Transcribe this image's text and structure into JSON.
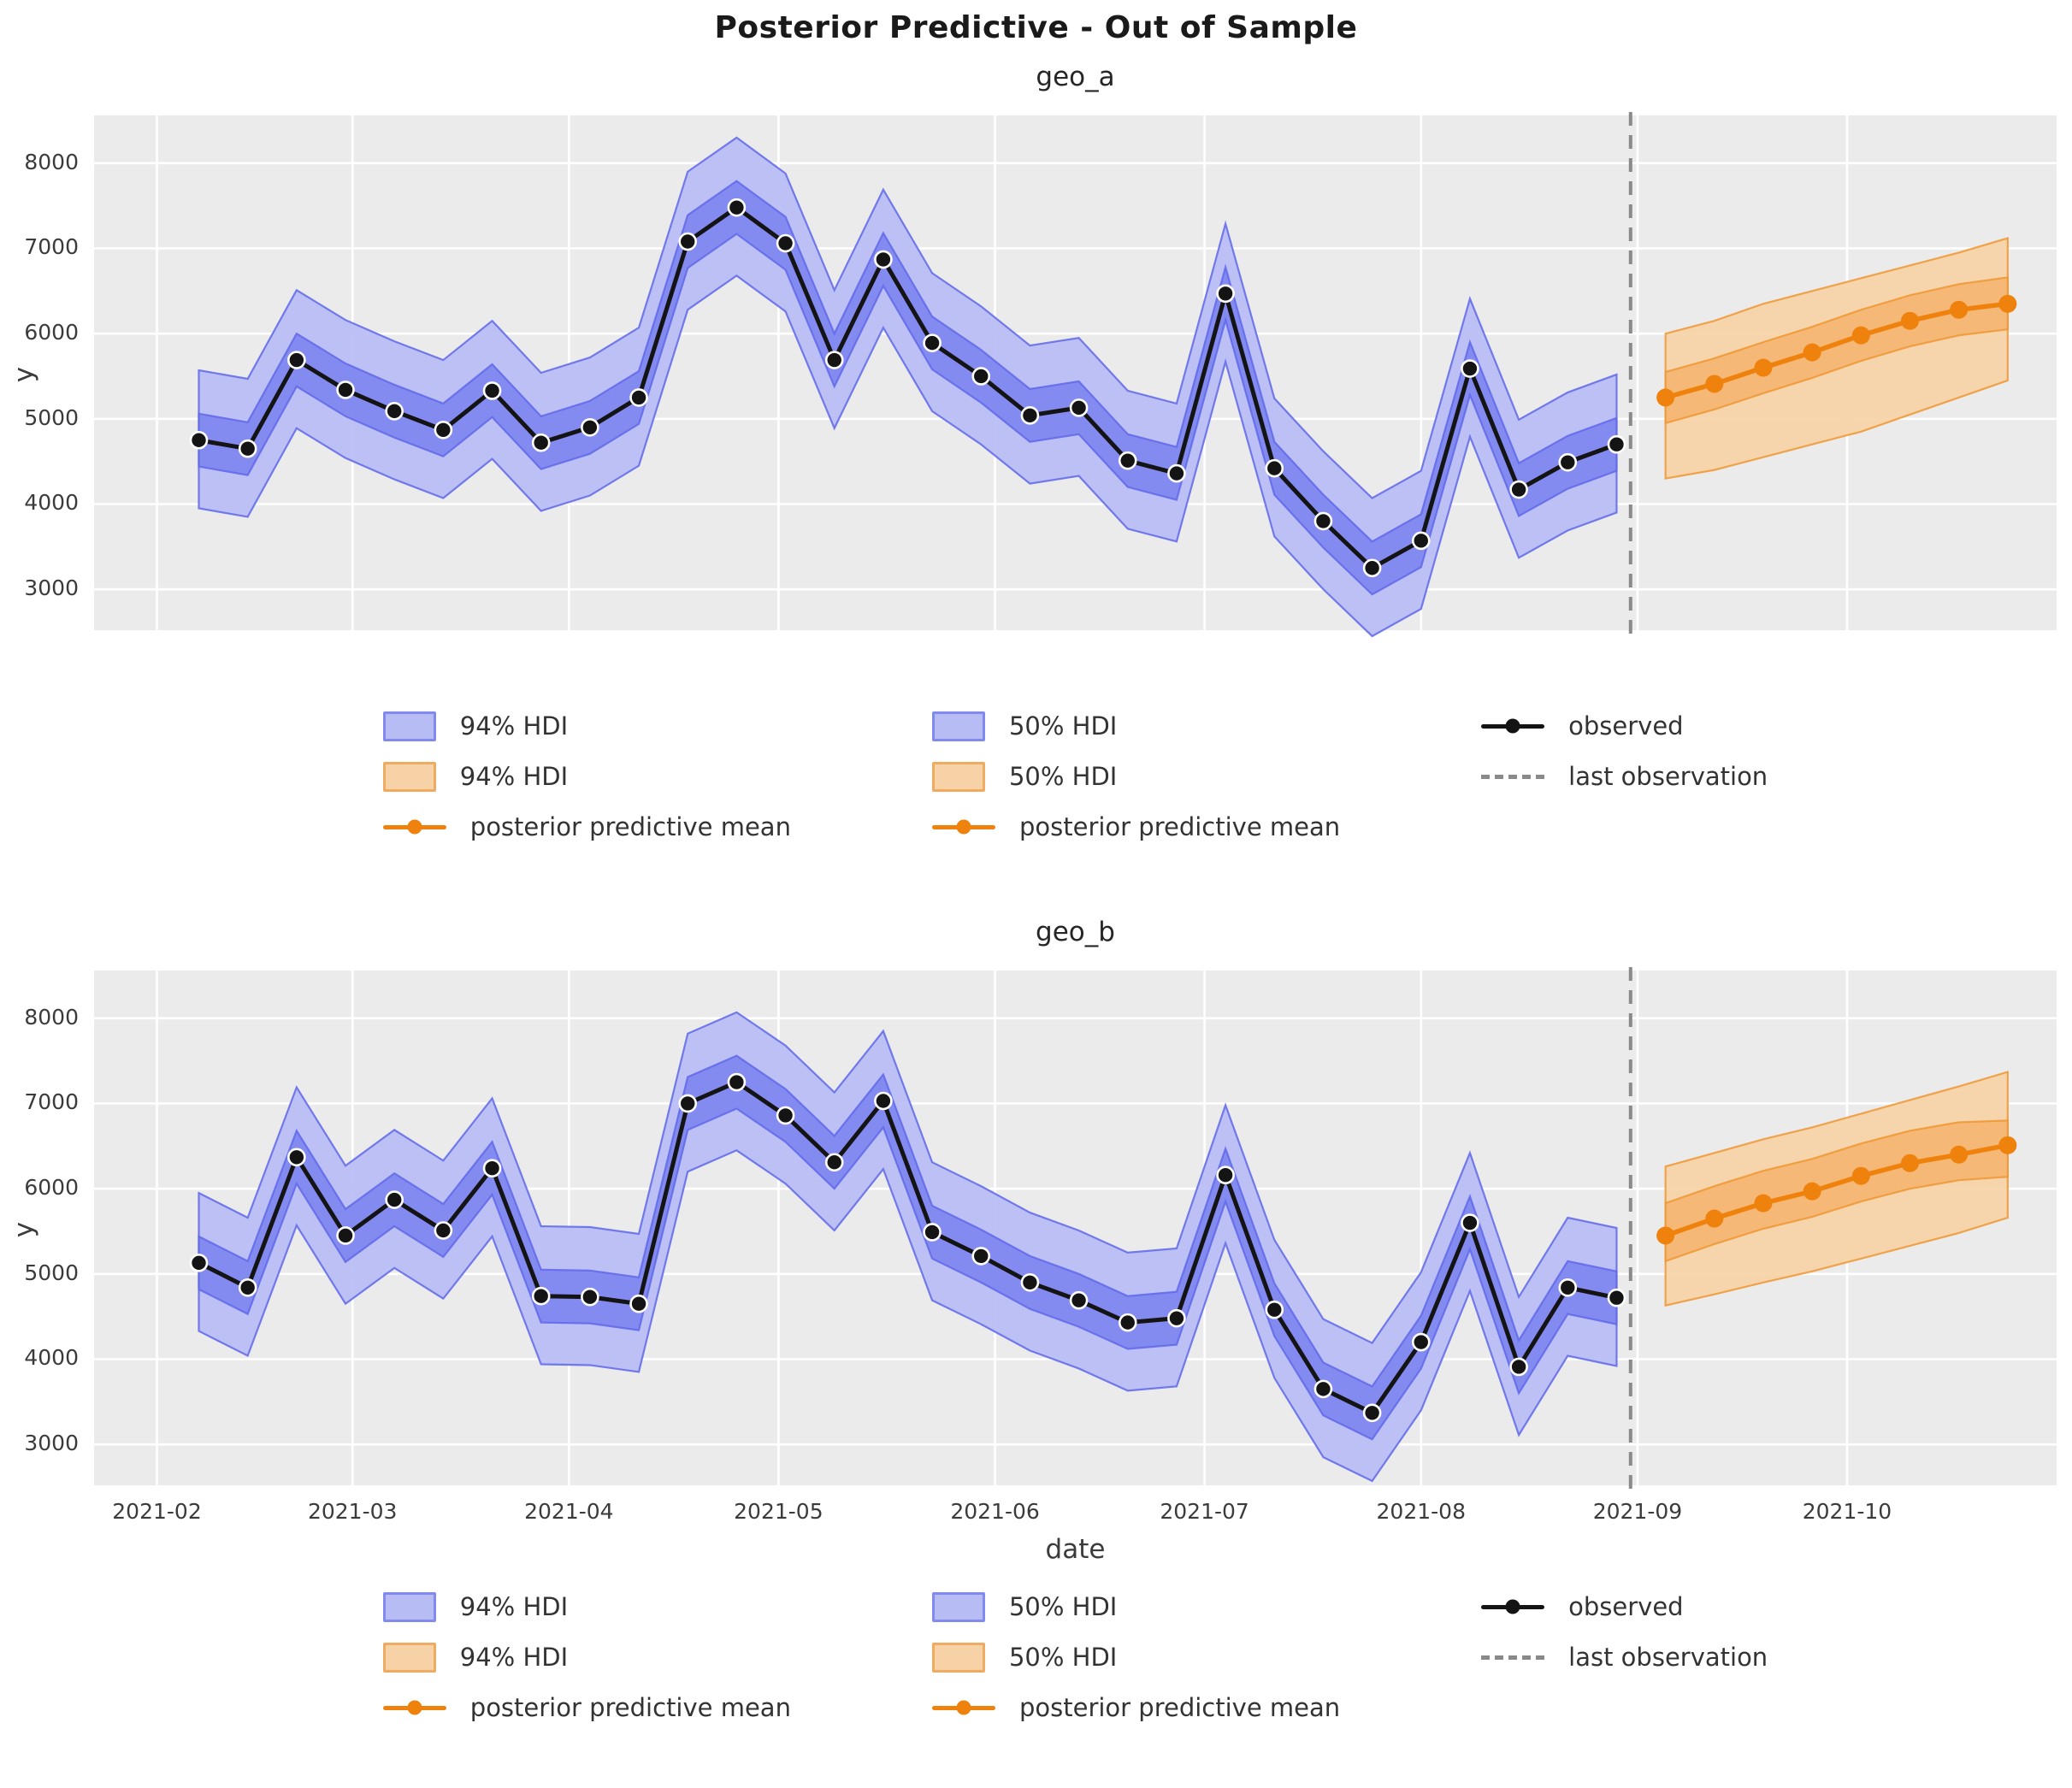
{
  "title": "Posterior Predictive - Out of Sample",
  "x_axis": {
    "label": "date",
    "ticks": [
      {
        "label": "2021-02",
        "date": "2021-02-01"
      },
      {
        "label": "2021-03",
        "date": "2021-03-01"
      },
      {
        "label": "2021-04",
        "date": "2021-04-01"
      },
      {
        "label": "2021-05",
        "date": "2021-05-01"
      },
      {
        "label": "2021-06",
        "date": "2021-06-01"
      },
      {
        "label": "2021-07",
        "date": "2021-07-01"
      },
      {
        "label": "2021-08",
        "date": "2021-08-01"
      },
      {
        "label": "2021-09",
        "date": "2021-09-01"
      },
      {
        "label": "2021-10",
        "date": "2021-10-01"
      }
    ]
  },
  "y_axis": {
    "label": "y",
    "ticks": [
      3000,
      4000,
      5000,
      6000,
      7000,
      8000
    ]
  },
  "legend": {
    "hdi94_insample": "94% HDI",
    "hdi50_insample": "50% HDI",
    "hdi94_forecast": "94% HDI",
    "hdi50_forecast": "50% HDI",
    "pp_mean": "posterior predictive mean",
    "observed": "observed",
    "last_observation": "last observation"
  },
  "colors": {
    "background": "#ffffff",
    "axes_background": "#ebebeb",
    "grid": "#ffffff",
    "hdi94_insample": "#b7bcf4",
    "hdi50_insample": "#7f87ef",
    "band_edge_insample": "#5f67ea",
    "observed": "#141414",
    "hdi94_forecast": "#f7d2a6",
    "hdi50_forecast": "#f5b571",
    "band_edge_forecast": "#ef9733",
    "pp_mean": "#ef820d",
    "last_observation": "#8a8a8a"
  },
  "chart_data": [
    {
      "type": "line",
      "title": "geo_a",
      "ylabel": "y",
      "ylim": [
        2520,
        8560
      ],
      "xlim": [
        "2021-01-23",
        "2021-10-31"
      ],
      "grid": true,
      "legend_position": "below",
      "last_observation_date": "2021-08-31",
      "observed": {
        "dates": [
          "2021-02-07",
          "2021-02-14",
          "2021-02-21",
          "2021-02-28",
          "2021-03-07",
          "2021-03-14",
          "2021-03-21",
          "2021-03-28",
          "2021-04-04",
          "2021-04-11",
          "2021-04-18",
          "2021-04-25",
          "2021-05-02",
          "2021-05-09",
          "2021-05-16",
          "2021-05-23",
          "2021-05-30",
          "2021-06-06",
          "2021-06-13",
          "2021-06-20",
          "2021-06-27",
          "2021-07-04",
          "2021-07-11",
          "2021-07-18",
          "2021-07-25",
          "2021-08-01",
          "2021-08-08",
          "2021-08-15",
          "2021-08-22",
          "2021-08-29"
        ],
        "values": [
          4750,
          4650,
          5690,
          5340,
          5090,
          4870,
          5330,
          4720,
          4900,
          5250,
          7080,
          7480,
          7060,
          5690,
          6870,
          5890,
          5500,
          5040,
          5130,
          4510,
          4360,
          6470,
          4420,
          3800,
          3250,
          3570,
          5590,
          4170,
          4490,
          4700
        ]
      },
      "insample_hdi": {
        "hdi94_lower": [
          3950,
          3850,
          4890,
          4540,
          4290,
          4070,
          4530,
          3920,
          4100,
          4450,
          6280,
          6680,
          6260,
          4890,
          6070,
          5090,
          4700,
          4240,
          4330,
          3710,
          3560,
          5670,
          3620,
          3000,
          2450,
          2770,
          4790,
          3370,
          3690,
          3900
        ],
        "hdi94_upper": [
          5570,
          5470,
          6510,
          6160,
          5910,
          5690,
          6150,
          5540,
          5720,
          6070,
          7900,
          8300,
          7880,
          6510,
          7690,
          6710,
          6320,
          5860,
          5950,
          5330,
          5180,
          7290,
          5240,
          4620,
          4070,
          4390,
          6410,
          4990,
          5310,
          5520
        ],
        "hdi50_lower": [
          4440,
          4340,
          5380,
          5030,
          4780,
          4560,
          5020,
          4410,
          4590,
          4940,
          6770,
          7170,
          6750,
          5380,
          6560,
          5580,
          5190,
          4730,
          4820,
          4200,
          4050,
          6160,
          4110,
          3490,
          2940,
          3260,
          5280,
          3860,
          4180,
          4390
        ],
        "hdi50_upper": [
          5060,
          4960,
          6000,
          5650,
          5400,
          5180,
          5640,
          5030,
          5210,
          5560,
          7390,
          7790,
          7370,
          6000,
          7180,
          6200,
          5810,
          5350,
          5440,
          4820,
          4670,
          6780,
          4730,
          4110,
          3560,
          3880,
          5900,
          4480,
          4800,
          5010
        ]
      },
      "forecast": {
        "dates": [
          "2021-09-05",
          "2021-09-12",
          "2021-09-19",
          "2021-09-26",
          "2021-10-03",
          "2021-10-10",
          "2021-10-17",
          "2021-10-24"
        ],
        "mean": [
          5250,
          5410,
          5600,
          5780,
          5980,
          6150,
          6280,
          6350
        ],
        "hdi94_lower": [
          4300,
          4400,
          4550,
          4700,
          4850,
          5050,
          5250,
          5450
        ],
        "hdi94_upper": [
          6000,
          6150,
          6350,
          6500,
          6650,
          6800,
          6950,
          7120
        ],
        "hdi50_lower": [
          4950,
          5110,
          5300,
          5480,
          5680,
          5850,
          5980,
          6050
        ],
        "hdi50_upper": [
          5550,
          5710,
          5900,
          6080,
          6280,
          6450,
          6580,
          6660
        ]
      }
    },
    {
      "type": "line",
      "title": "geo_b",
      "ylabel": "y",
      "ylim": [
        2520,
        8560
      ],
      "xlim": [
        "2021-01-23",
        "2021-10-31"
      ],
      "grid": true,
      "legend_position": "below",
      "last_observation_date": "2021-08-31",
      "observed": {
        "dates": [
          "2021-02-07",
          "2021-02-14",
          "2021-02-21",
          "2021-02-28",
          "2021-03-07",
          "2021-03-14",
          "2021-03-21",
          "2021-03-28",
          "2021-04-04",
          "2021-04-11",
          "2021-04-18",
          "2021-04-25",
          "2021-05-02",
          "2021-05-09",
          "2021-05-16",
          "2021-05-23",
          "2021-05-30",
          "2021-06-06",
          "2021-06-13",
          "2021-06-20",
          "2021-06-27",
          "2021-07-04",
          "2021-07-11",
          "2021-07-18",
          "2021-07-25",
          "2021-08-01",
          "2021-08-08",
          "2021-08-15",
          "2021-08-22",
          "2021-08-29"
        ],
        "values": [
          5130,
          4840,
          6370,
          5450,
          5870,
          5510,
          6240,
          4740,
          4730,
          4650,
          7000,
          7250,
          6860,
          6310,
          7030,
          5490,
          5210,
          4900,
          4690,
          4430,
          4480,
          6160,
          4580,
          3650,
          3370,
          4200,
          5600,
          3910,
          4840,
          4720
        ]
      },
      "insample_hdi": {
        "hdi94_lower": [
          4330,
          4040,
          5570,
          4650,
          5070,
          4710,
          5440,
          3940,
          3930,
          3850,
          6200,
          6450,
          6060,
          5510,
          6230,
          4690,
          4410,
          4100,
          3890,
          3630,
          3680,
          5360,
          3780,
          2850,
          2570,
          3400,
          4800,
          3110,
          4040,
          3920
        ],
        "hdi94_upper": [
          5950,
          5660,
          7190,
          6270,
          6690,
          6330,
          7060,
          5560,
          5550,
          5470,
          7820,
          8070,
          7680,
          7130,
          7850,
          6310,
          6030,
          5720,
          5510,
          5250,
          5300,
          6980,
          5400,
          4470,
          4190,
          5020,
          6420,
          4730,
          5660,
          5540
        ],
        "hdi50_lower": [
          4820,
          4530,
          6060,
          5140,
          5560,
          5200,
          5930,
          4430,
          4420,
          4340,
          6690,
          6940,
          6550,
          6000,
          6720,
          5180,
          4900,
          4590,
          4380,
          4120,
          4170,
          5850,
          4270,
          3340,
          3060,
          3890,
          5290,
          3600,
          4530,
          4410
        ],
        "hdi50_upper": [
          5440,
          5150,
          6680,
          5760,
          6180,
          5820,
          6550,
          5050,
          5040,
          4960,
          7310,
          7560,
          7170,
          6620,
          7340,
          5800,
          5520,
          5210,
          5000,
          4740,
          4790,
          6470,
          4890,
          3960,
          3680,
          4510,
          5910,
          4220,
          5150,
          5030
        ]
      },
      "forecast": {
        "dates": [
          "2021-09-05",
          "2021-09-12",
          "2021-09-19",
          "2021-09-26",
          "2021-10-03",
          "2021-10-10",
          "2021-10-17",
          "2021-10-24"
        ],
        "mean": [
          5450,
          5650,
          5830,
          5970,
          6150,
          6300,
          6400,
          6510
        ],
        "hdi94_lower": [
          4630,
          4760,
          4900,
          5030,
          5180,
          5330,
          5480,
          5660
        ],
        "hdi94_upper": [
          6260,
          6420,
          6580,
          6720,
          6880,
          7040,
          7200,
          7370
        ],
        "hdi50_lower": [
          5150,
          5350,
          5530,
          5670,
          5850,
          6000,
          6100,
          6140
        ],
        "hdi50_upper": [
          5830,
          6030,
          6210,
          6350,
          6530,
          6680,
          6780,
          6800
        ]
      }
    }
  ]
}
